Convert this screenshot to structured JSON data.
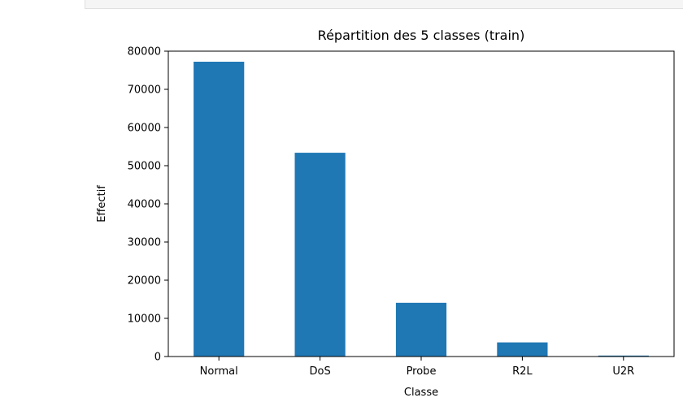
{
  "chart_data": {
    "type": "bar",
    "title": "Répartition des 5 classes (train)",
    "xlabel": "Classe",
    "ylabel": "Effectif",
    "categories": [
      "Normal",
      "DoS",
      "Probe",
      "R2L",
      "U2R"
    ],
    "values": [
      77232,
      53387,
      14077,
      3702,
      252
    ],
    "ylim": [
      0,
      80000
    ],
    "yticks": [
      0,
      10000,
      20000,
      30000,
      40000,
      50000,
      60000,
      70000,
      80000
    ],
    "ytick_labels": [
      "0",
      "10000",
      "20000",
      "30000",
      "40000",
      "50000",
      "60000",
      "70000",
      "80000"
    ],
    "bar_color": "#1f77b4",
    "grid": false,
    "legend": "none"
  }
}
